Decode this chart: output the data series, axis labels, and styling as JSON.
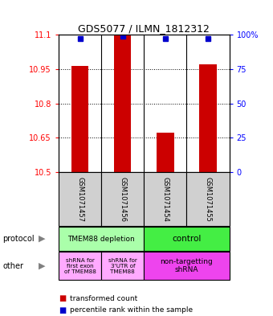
{
  "title": "GDS5077 / ILMN_1812312",
  "samples": [
    "GSM1071457",
    "GSM1071456",
    "GSM1071454",
    "GSM1071455"
  ],
  "red_values": [
    10.963,
    11.097,
    10.672,
    10.972
  ],
  "blue_values": [
    97,
    99,
    97,
    97
  ],
  "ylim_left": [
    10.5,
    11.1
  ],
  "ylim_right": [
    0,
    100
  ],
  "yticks_left": [
    10.5,
    10.65,
    10.8,
    10.95,
    11.1
  ],
  "yticks_right": [
    0,
    25,
    50,
    75,
    100
  ],
  "ytick_labels_left": [
    "10.5",
    "10.65",
    "10.8",
    "10.95",
    "11.1"
  ],
  "ytick_labels_right": [
    "0",
    "25",
    "50",
    "75",
    "100%"
  ],
  "bar_color": "#cc0000",
  "dot_color": "#0000cc",
  "protocol_labels": [
    "TMEM88 depletion",
    "control"
  ],
  "protocol_bg": [
    "#aaffaa",
    "#44ee44"
  ],
  "other_labels_left1": "shRNA for\nfirst exon\nof TMEM88",
  "other_labels_left2": "shRNA for\n3'UTR of\nTMEM88",
  "other_labels_right": "non-targetting\nshRNA",
  "other_bg_light": "#ffaaff",
  "other_bg_dark": "#ee44ee",
  "sample_bg": "#d0d0d0",
  "legend_red": "transformed count",
  "legend_blue": "percentile rank within the sample",
  "protocol_text": "protocol",
  "other_text": "other"
}
